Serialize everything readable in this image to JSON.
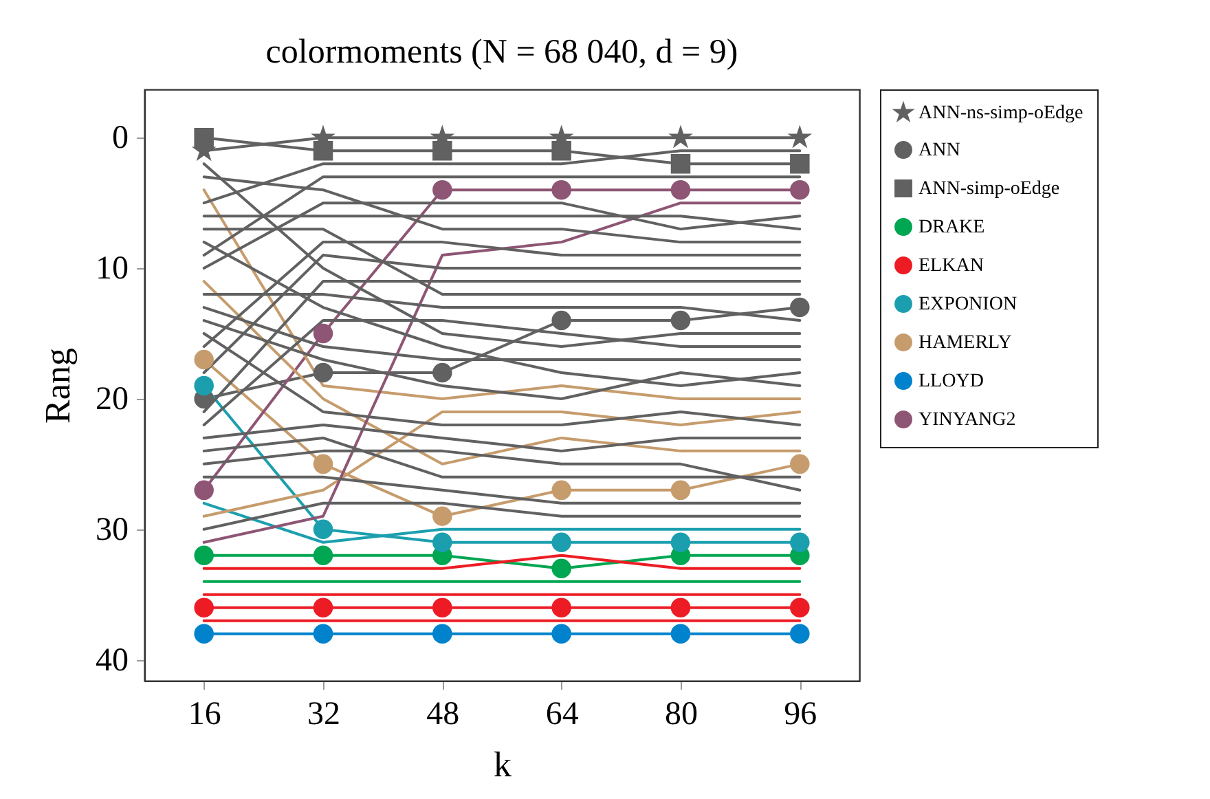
{
  "chart_data": {
    "type": "line",
    "title": "colormoments (N = 68 040, d = 9)",
    "xlabel": "k",
    "ylabel": "Rang",
    "x": [
      16,
      32,
      48,
      64,
      80,
      96
    ],
    "xlim": [
      8,
      104
    ],
    "xticks": [
      16,
      32,
      48,
      64,
      80,
      96
    ],
    "ylim": [
      41.6,
      -3.7
    ],
    "yticks": [
      0,
      10,
      20,
      30,
      40
    ],
    "grid": false,
    "legend": "right",
    "series": [
      {
        "name": "ANN-ns-simp-oEdge",
        "color": "#616161",
        "marker": "star",
        "values": [
          1,
          0,
          0,
          0,
          0,
          0
        ]
      },
      {
        "name": "ANN",
        "color": "#616161",
        "marker": "circle",
        "values": [
          20,
          18,
          18,
          14,
          14,
          13
        ]
      },
      {
        "name": "ANN-simp-oEdge",
        "color": "#616161",
        "marker": "square",
        "values": [
          0,
          1,
          1,
          1,
          2,
          2
        ]
      },
      {
        "name": "DRAKE",
        "color": "#00a651",
        "marker": "circle",
        "values": [
          32,
          32,
          32,
          33,
          32,
          32
        ]
      },
      {
        "name": "ELKAN",
        "color": "#ed1c24",
        "marker": "circle",
        "values": [
          36,
          36,
          36,
          36,
          36,
          36
        ]
      },
      {
        "name": "EXPONION",
        "color": "#1b9fae",
        "marker": "circle",
        "values": [
          19,
          30,
          31,
          31,
          31,
          31
        ]
      },
      {
        "name": "HAMERLY",
        "color": "#c69c6d",
        "marker": "circle",
        "values": [
          17,
          25,
          29,
          27,
          27,
          25
        ]
      },
      {
        "name": "LLOYD",
        "color": "#0083cc",
        "marker": "circle",
        "values": [
          38,
          38,
          38,
          38,
          38,
          38
        ]
      },
      {
        "name": "YINYANG2",
        "color": "#8e5574",
        "marker": "circle",
        "values": [
          27,
          15,
          4,
          4,
          4,
          4
        ]
      },
      {
        "color": "#00a651",
        "marker": "none",
        "values": [
          34,
          34,
          34,
          34,
          34,
          34
        ]
      },
      {
        "color": "#ed1c24",
        "marker": "none",
        "values": [
          33,
          33,
          33,
          32,
          33,
          33
        ]
      },
      {
        "color": "#ed1c24",
        "marker": "none",
        "values": [
          35,
          35,
          35,
          35,
          35,
          35
        ]
      },
      {
        "color": "#ed1c24",
        "marker": "none",
        "values": [
          37,
          37,
          37,
          37,
          37,
          37
        ]
      },
      {
        "color": "#1b9fae",
        "marker": "none",
        "values": [
          28,
          31,
          30,
          30,
          30,
          30
        ]
      },
      {
        "color": "#c69c6d",
        "marker": "none",
        "values": [
          4,
          19,
          20,
          19,
          20,
          20
        ]
      },
      {
        "color": "#c69c6d",
        "marker": "none",
        "values": [
          11,
          20,
          25,
          23,
          24,
          24
        ]
      },
      {
        "color": "#c69c6d",
        "marker": "none",
        "values": [
          29,
          27,
          21,
          21,
          22,
          21
        ]
      },
      {
        "color": "#8e5574",
        "marker": "none",
        "values": [
          31,
          29,
          9,
          8,
          5,
          5
        ]
      },
      {
        "color": "#616161",
        "marker": "none",
        "values": [
          2,
          10,
          15,
          16,
          15,
          15
        ]
      },
      {
        "color": "#616161",
        "marker": "none",
        "values": [
          3,
          4,
          7,
          7,
          8,
          8
        ]
      },
      {
        "color": "#616161",
        "marker": "none",
        "values": [
          5,
          2,
          2,
          2,
          1,
          1
        ]
      },
      {
        "color": "#616161",
        "marker": "none",
        "values": [
          6,
          6,
          6,
          6,
          6,
          7
        ]
      },
      {
        "color": "#616161",
        "marker": "none",
        "values": [
          7,
          7,
          12,
          12,
          12,
          12
        ]
      },
      {
        "color": "#616161",
        "marker": "none",
        "values": [
          8,
          13,
          16,
          18,
          19,
          18
        ]
      },
      {
        "color": "#616161",
        "marker": "none",
        "values": [
          9,
          3,
          3,
          3,
          3,
          3
        ]
      },
      {
        "color": "#616161",
        "marker": "none",
        "values": [
          10,
          5,
          5,
          5,
          7,
          6
        ]
      },
      {
        "color": "#616161",
        "marker": "none",
        "values": [
          12,
          12,
          13,
          13,
          13,
          14
        ]
      },
      {
        "color": "#616161",
        "marker": "none",
        "values": [
          13,
          16,
          17,
          17,
          17,
          17
        ]
      },
      {
        "color": "#616161",
        "marker": "none",
        "values": [
          14,
          17,
          19,
          20,
          18,
          19
        ]
      },
      {
        "color": "#616161",
        "marker": "none",
        "values": [
          15,
          21,
          22,
          22,
          21,
          22
        ]
      },
      {
        "color": "#616161",
        "marker": "none",
        "values": [
          16,
          8,
          8,
          9,
          9,
          9
        ]
      },
      {
        "color": "#616161",
        "marker": "none",
        "values": [
          18,
          9,
          10,
          10,
          10,
          10
        ]
      },
      {
        "color": "#616161",
        "marker": "none",
        "values": [
          21,
          11,
          11,
          11,
          11,
          11
        ]
      },
      {
        "color": "#616161",
        "marker": "none",
        "values": [
          22,
          14,
          14,
          15,
          16,
          16
        ]
      },
      {
        "color": "#616161",
        "marker": "none",
        "values": [
          23,
          22,
          23,
          24,
          23,
          23
        ]
      },
      {
        "color": "#616161",
        "marker": "none",
        "values": [
          24,
          23,
          26,
          26,
          26,
          26
        ]
      },
      {
        "color": "#616161",
        "marker": "none",
        "values": [
          25,
          24,
          24,
          25,
          25,
          27
        ]
      },
      {
        "color": "#616161",
        "marker": "none",
        "values": [
          26,
          26,
          27,
          28,
          28,
          28
        ]
      },
      {
        "color": "#616161",
        "marker": "none",
        "values": [
          30,
          28,
          28,
          29,
          29,
          29
        ]
      }
    ]
  }
}
